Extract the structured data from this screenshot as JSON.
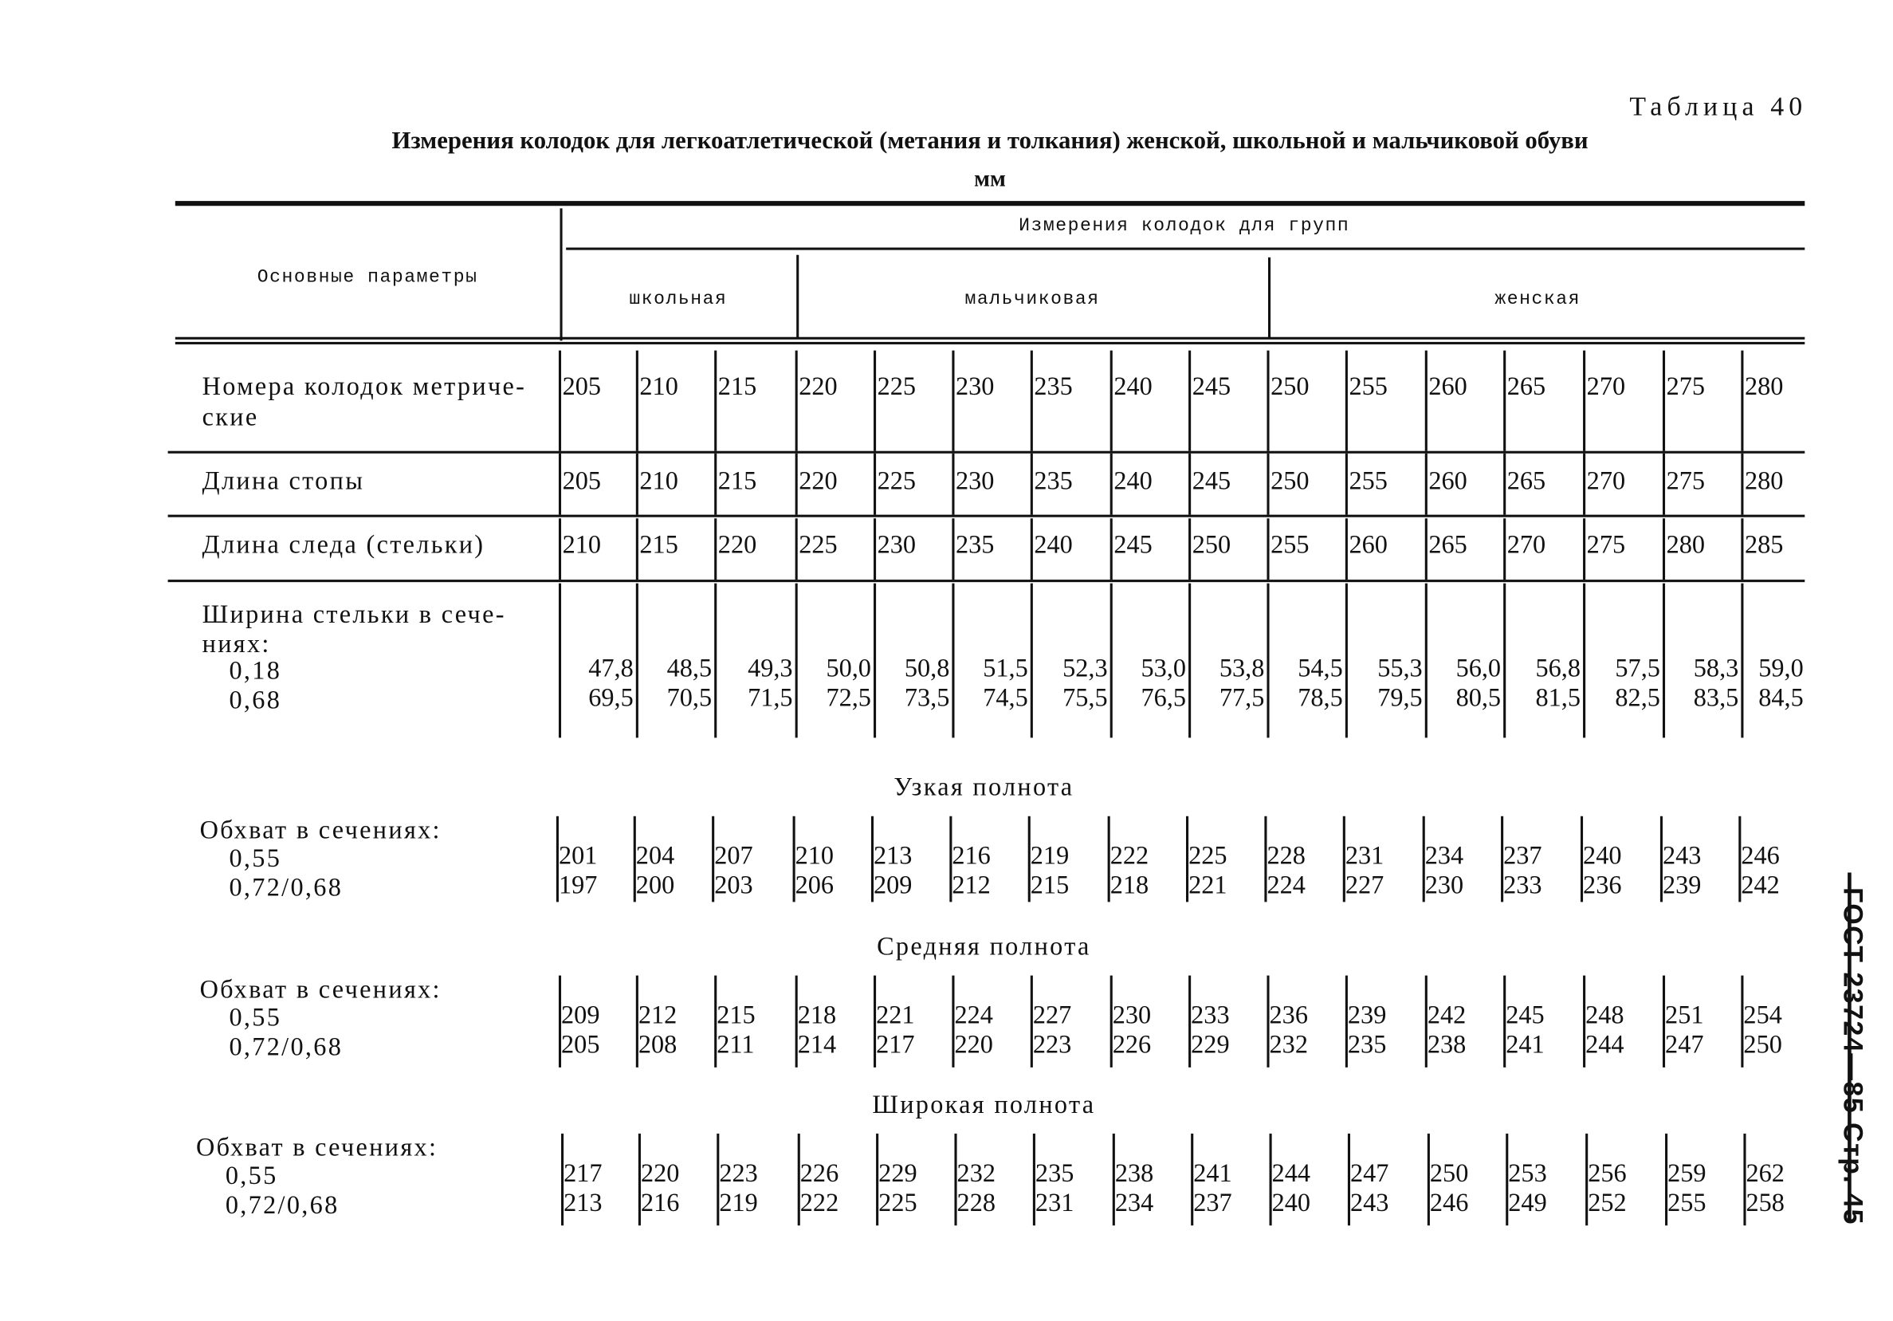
{
  "table_number": "Таблица 40",
  "title": "Измерения колодок для легкоатлетической (метания и толкания) женской,  школьной и мальчиковой обуви",
  "unit": "мм",
  "header": {
    "param_col": "Основные параметры",
    "group_header": "Измерения колодок для групп",
    "groups": [
      {
        "label": "школьная",
        "span": 3
      },
      {
        "label": "мальчиковая",
        "span": 6
      },
      {
        "label": "женская",
        "span": 7
      }
    ]
  },
  "rows": [
    {
      "label": [
        "Номера колодок метриче-",
        "ские"
      ],
      "values": [
        "205",
        "210",
        "215",
        "220",
        "225",
        "230",
        "235",
        "240",
        "245",
        "250",
        "255",
        "260",
        "265",
        "270",
        "275",
        "280"
      ]
    },
    {
      "label": [
        "Длина стопы"
      ],
      "values": [
        "205",
        "210",
        "215",
        "220",
        "225",
        "230",
        "235",
        "240",
        "245",
        "250",
        "255",
        "260",
        "265",
        "270",
        "275",
        "280"
      ]
    },
    {
      "label": [
        "Длина следа (стельки)"
      ],
      "values": [
        "210",
        "215",
        "220",
        "225",
        "230",
        "235",
        "240",
        "245",
        "250",
        "255",
        "260",
        "265",
        "270",
        "275",
        "280",
        "285"
      ]
    }
  ],
  "width_row": {
    "label": [
      "Ширина стельки в сече-",
      "ниях:"
    ],
    "sub": [
      {
        "label": "0,18",
        "values": [
          "47,8",
          "48,5",
          "49,3",
          "50,0",
          "50,8",
          "51,5",
          "52,3",
          "53,0",
          "53,8",
          "54,5",
          "55,3",
          "56,0",
          "56,8",
          "57,5",
          "58,3",
          "59,0"
        ]
      },
      {
        "label": "0,68",
        "values": [
          "69,5",
          "70,5",
          "71,5",
          "72,5",
          "73,5",
          "74,5",
          "75,5",
          "76,5",
          "77,5",
          "78,5",
          "79,5",
          "80,5",
          "81,5",
          "82,5",
          "83,5",
          "84,5"
        ]
      }
    ]
  },
  "girth_sections": [
    {
      "title": "Узкая полнота",
      "label": "Обхват в сечениях:",
      "sub": [
        {
          "label": "0,55",
          "values": [
            "201",
            "204",
            "207",
            "210",
            "213",
            "216",
            "219",
            "222",
            "225",
            "228",
            "231",
            "234",
            "237",
            "240",
            "243",
            "246"
          ]
        },
        {
          "label": "0,72/0,68",
          "values": [
            "197",
            "200",
            "203",
            "206",
            "209",
            "212",
            "215",
            "218",
            "221",
            "224",
            "227",
            "230",
            "233",
            "236",
            "239",
            "242"
          ]
        }
      ]
    },
    {
      "title": "Средняя полнота",
      "label": "Обхват в сечениях:",
      "sub": [
        {
          "label": "0,55",
          "values": [
            "209",
            "212",
            "215",
            "218",
            "221",
            "224",
            "227",
            "230",
            "233",
            "236",
            "239",
            "242",
            "245",
            "248",
            "251",
            "254"
          ]
        },
        {
          "label": "0,72/0,68",
          "values": [
            "205",
            "208",
            "211",
            "214",
            "217",
            "220",
            "223",
            "226",
            "229",
            "232",
            "235",
            "238",
            "241",
            "244",
            "247",
            "250"
          ]
        }
      ]
    },
    {
      "title": "Широкая полнота",
      "label": "Обхват в сечениях:",
      "sub": [
        {
          "label": "0,55",
          "values": [
            "217",
            "220",
            "223",
            "226",
            "229",
            "232",
            "235",
            "238",
            "241",
            "244",
            "247",
            "250",
            "253",
            "256",
            "259",
            "262"
          ]
        },
        {
          "label": "0,72/0,68",
          "values": [
            "213",
            "216",
            "219",
            "222",
            "225",
            "228",
            "231",
            "234",
            "237",
            "240",
            "243",
            "246",
            "249",
            "252",
            "255",
            "258"
          ]
        }
      ]
    }
  ],
  "side_caption": "ГОСТ 23724—85 Стр. 45"
}
